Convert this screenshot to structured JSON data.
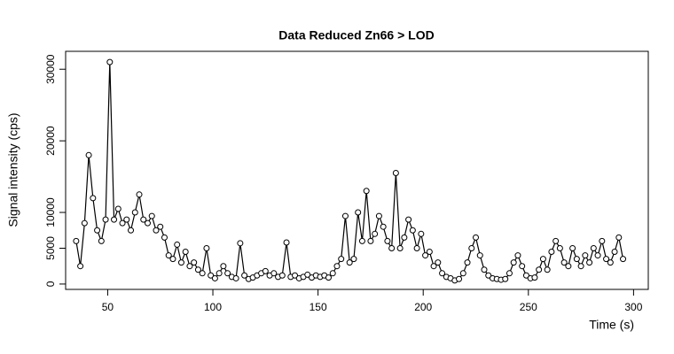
{
  "chart_data": {
    "type": "line",
    "title": "Data Reduced Zn66 > LOD",
    "x_label": "Time (s)",
    "y_label": "Signal intensity (cps)",
    "x": [
      35,
      37,
      39,
      41,
      43,
      45,
      47,
      49,
      51,
      53,
      55,
      57,
      59,
      61,
      63,
      65,
      67,
      69,
      71,
      73,
      75,
      77,
      79,
      81,
      83,
      85,
      87,
      89,
      91,
      93,
      95,
      97,
      99,
      101,
      103,
      105,
      107,
      109,
      111,
      113,
      115,
      117,
      119,
      121,
      123,
      125,
      127,
      129,
      131,
      133,
      135,
      137,
      139,
      141,
      143,
      145,
      147,
      149,
      151,
      153,
      155,
      157,
      159,
      161,
      163,
      165,
      167,
      169,
      171,
      173,
      175,
      177,
      179,
      181,
      183,
      185,
      187,
      189,
      191,
      193,
      195,
      197,
      199,
      201,
      203,
      205,
      207,
      209,
      211,
      213,
      215,
      217,
      219,
      221,
      223,
      225,
      227,
      229,
      231,
      233,
      235,
      237,
      239,
      241,
      243,
      245,
      247,
      249,
      251,
      253,
      255,
      257,
      259,
      261,
      263,
      265,
      267,
      269,
      271,
      273,
      275,
      277,
      279,
      281,
      283,
      285,
      287,
      289,
      291,
      293,
      295
    ],
    "series": [
      {
        "name": "Zn66",
        "color": "#000000",
        "values": [
          6000,
          2500,
          8500,
          18000,
          12000,
          7500,
          6000,
          9000,
          31000,
          9000,
          10500,
          8500,
          9000,
          7500,
          10000,
          12500,
          9000,
          8500,
          9500,
          7500,
          8000,
          6500,
          4000,
          3500,
          5500,
          3000,
          4500,
          2500,
          3000,
          2000,
          1500,
          5000,
          1200,
          800,
          1500,
          2500,
          1500,
          1000,
          800,
          5700,
          1200,
          700,
          900,
          1200,
          1500,
          1800,
          1200,
          1500,
          1000,
          1200,
          5800,
          1000,
          1200,
          800,
          1000,
          1300,
          900,
          1200,
          1000,
          1200,
          900,
          1500,
          2500,
          3500,
          9500,
          3000,
          3500,
          10000,
          6000,
          13000,
          6000,
          7000,
          9500,
          8000,
          6000,
          5000,
          15500,
          5000,
          6500,
          9000,
          7500,
          5000,
          7000,
          4000,
          4500,
          2500,
          3000,
          1500,
          1000,
          800,
          500,
          700,
          1500,
          3000,
          5000,
          6500,
          4000,
          2000,
          1200,
          800,
          700,
          600,
          700,
          1500,
          3000,
          4000,
          2500,
          1200,
          800,
          900,
          2000,
          3500,
          2000,
          4500,
          6000,
          5000,
          3000,
          2500,
          5000,
          3500,
          2500,
          4000,
          3000,
          5000,
          4000,
          6000,
          3500,
          3000,
          4500,
          6500,
          3500
        ]
      }
    ],
    "xlim": [
      30,
      307
    ],
    "ylim": [
      -750,
      32500
    ],
    "xticks": [
      50,
      100,
      150,
      200,
      250,
      300
    ],
    "yticks": [
      0,
      5000,
      10000,
      20000,
      30000
    ]
  }
}
